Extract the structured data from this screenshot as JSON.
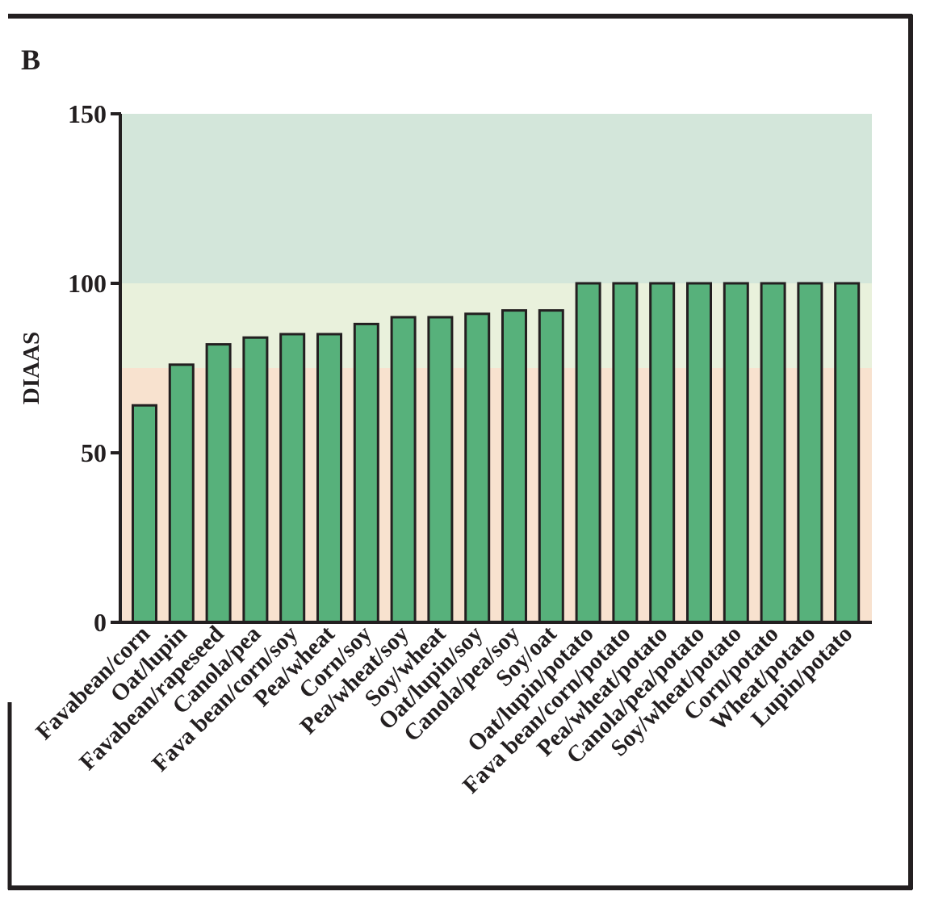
{
  "panel_label": "B",
  "chart_data": {
    "type": "bar",
    "title": "",
    "xlabel": "",
    "ylabel": "DIAAS",
    "ylim": [
      0,
      150
    ],
    "yticks": [
      0,
      50,
      100,
      150
    ],
    "grid": false,
    "categories": [
      "Favabean/corn",
      "Oat/lupin",
      "Favabean/rapeseed",
      "Canola/pea",
      "Fava bean/corn/soy",
      "Pea/wheat",
      "Corn/soy",
      "Pea/wheat/soy",
      "Soy/wheat",
      "Oat/lupin/soy",
      "Canola/pea/soy",
      "Soy/oat",
      "Oat/lupin/potato",
      "Fava bean/corn/potato",
      "Pea/wheat/potato",
      "Canola/pea/potato",
      "Soy/wheat/potato",
      "Corn/potato",
      "Wheat/potato",
      "Lupin/potato"
    ],
    "values": [
      64,
      76,
      82,
      84,
      85,
      85,
      88,
      90,
      90,
      91,
      92,
      92,
      100,
      100,
      100,
      100,
      100,
      100,
      100,
      100
    ],
    "background_bands": [
      {
        "from": 0,
        "to": 75,
        "color": "#f8e2cf"
      },
      {
        "from": 75,
        "to": 100,
        "color": "#e9f1dc"
      },
      {
        "from": 100,
        "to": 150,
        "color": "#d3e6da"
      }
    ],
    "bar_color": "#57b17b",
    "bar_edge_color": "#231f20"
  }
}
